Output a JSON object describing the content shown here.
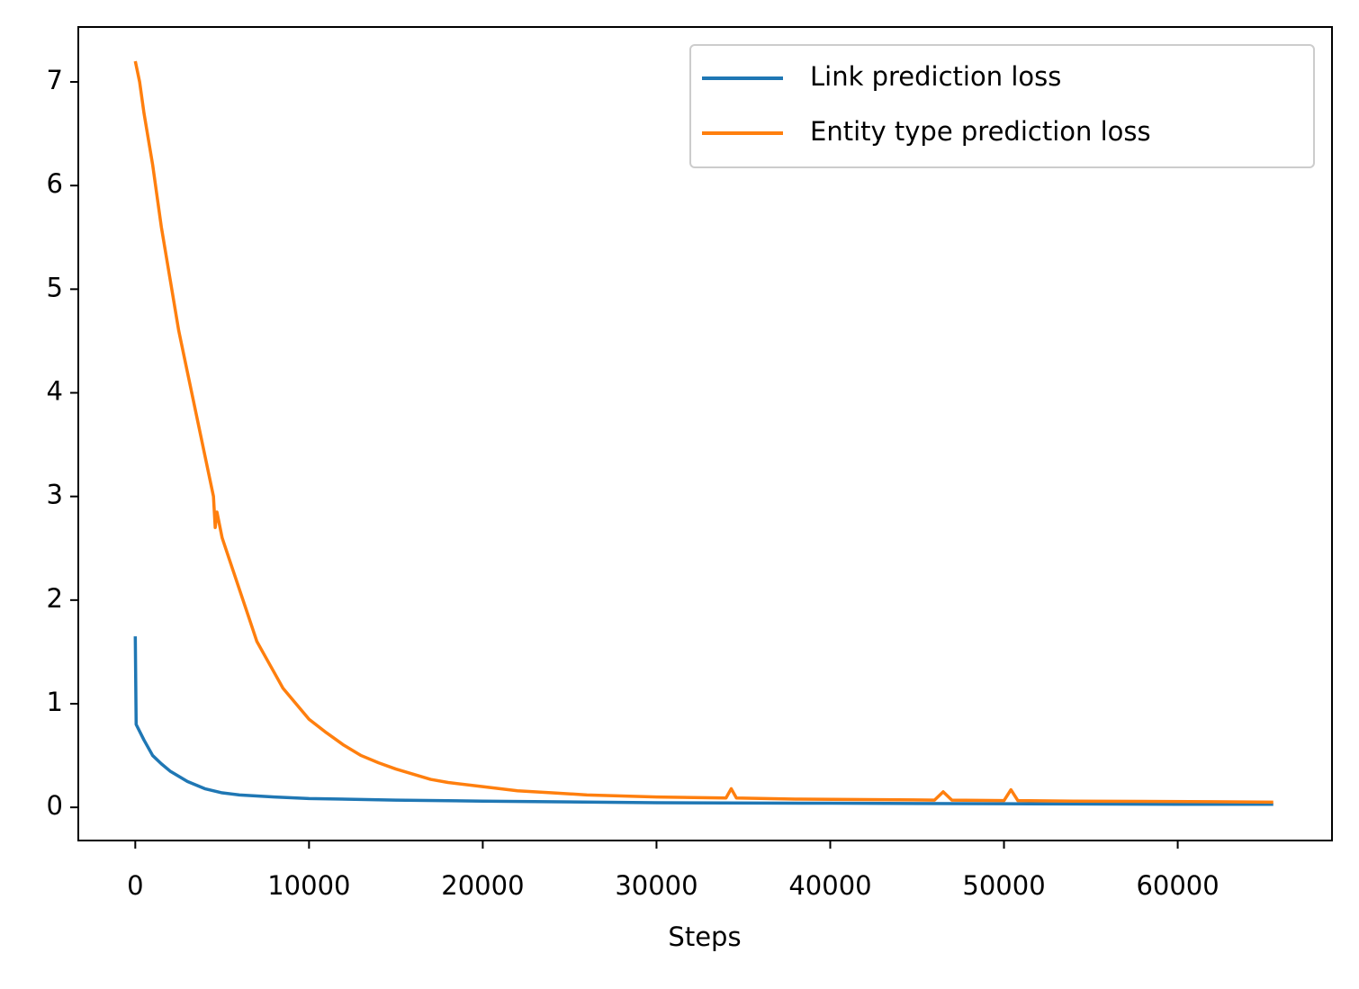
{
  "chart_data": {
    "type": "line",
    "xlabel": "Steps",
    "xlim": [
      -3280,
      68880
    ],
    "ylim": [
      -0.32,
      7.53
    ],
    "xticks": [
      0,
      10000,
      20000,
      30000,
      40000,
      50000,
      60000
    ],
    "yticks": [
      0,
      1,
      2,
      3,
      4,
      5,
      6,
      7
    ],
    "legend": "upper right",
    "series": [
      {
        "name": "Link prediction loss",
        "color": "#1f77b4",
        "x": [
          0,
          50,
          500,
          1000,
          1500,
          2000,
          3000,
          4000,
          5000,
          6000,
          8000,
          10000,
          15000,
          20000,
          30000,
          40000,
          50000,
          60000,
          65500
        ],
        "values": [
          1.65,
          0.8,
          0.65,
          0.5,
          0.42,
          0.35,
          0.25,
          0.18,
          0.14,
          0.12,
          0.1,
          0.085,
          0.07,
          0.06,
          0.045,
          0.04,
          0.035,
          0.03,
          0.03
        ]
      },
      {
        "name": "Entity type prediction loss",
        "color": "#ff7f0e",
        "x": [
          0,
          250,
          500,
          1000,
          1500,
          2000,
          2500,
          3000,
          3500,
          4000,
          4500,
          4600,
          4700,
          5000,
          5500,
          6000,
          6500,
          7000,
          7500,
          8000,
          8500,
          9000,
          10000,
          11000,
          12000,
          13000,
          14000,
          15000,
          16000,
          17000,
          18000,
          20000,
          22000,
          24000,
          26000,
          28000,
          30000,
          34000,
          34300,
          34600,
          38000,
          42000,
          46000,
          46500,
          47000,
          50000,
          50400,
          50800,
          54000,
          58000,
          62000,
          65500
        ],
        "values": [
          7.2,
          7.0,
          6.7,
          6.2,
          5.6,
          5.1,
          4.6,
          4.2,
          3.8,
          3.4,
          3.0,
          2.7,
          2.85,
          2.6,
          2.35,
          2.1,
          1.85,
          1.6,
          1.45,
          1.3,
          1.15,
          1.05,
          0.85,
          0.72,
          0.6,
          0.5,
          0.43,
          0.37,
          0.32,
          0.27,
          0.24,
          0.2,
          0.16,
          0.14,
          0.12,
          0.11,
          0.1,
          0.09,
          0.18,
          0.09,
          0.08,
          0.075,
          0.07,
          0.15,
          0.07,
          0.065,
          0.17,
          0.065,
          0.06,
          0.058,
          0.055,
          0.05
        ]
      }
    ]
  }
}
